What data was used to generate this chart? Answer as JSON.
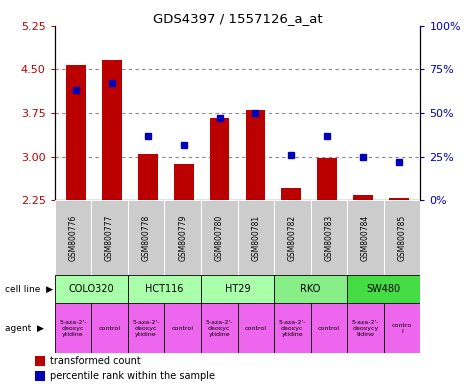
{
  "title": "GDS4397 / 1557126_a_at",
  "samples": [
    "GSM800776",
    "GSM800777",
    "GSM800778",
    "GSM800779",
    "GSM800780",
    "GSM800781",
    "GSM800782",
    "GSM800783",
    "GSM800784",
    "GSM800785"
  ],
  "red_values": [
    4.57,
    4.67,
    3.05,
    2.87,
    3.67,
    3.8,
    2.47,
    2.98,
    2.35,
    2.3
  ],
  "blue_values": [
    0.63,
    0.67,
    0.37,
    0.32,
    0.47,
    0.5,
    0.26,
    0.37,
    0.25,
    0.22
  ],
  "ylim_left": [
    2.25,
    5.25
  ],
  "yticks_left": [
    2.25,
    3.0,
    3.75,
    4.5,
    5.25
  ],
  "ytick_labels_right": [
    "0%",
    "25%",
    "50%",
    "75%",
    "100%"
  ],
  "cell_lines": [
    {
      "label": "COLO320",
      "start": 0,
      "end": 2,
      "color": "#aaffaa"
    },
    {
      "label": "HCT116",
      "start": 2,
      "end": 4,
      "color": "#aaffaa"
    },
    {
      "label": "HT29",
      "start": 4,
      "end": 6,
      "color": "#aaffaa"
    },
    {
      "label": "RKO",
      "start": 6,
      "end": 8,
      "color": "#88ee88"
    },
    {
      "label": "SW480",
      "start": 8,
      "end": 10,
      "color": "#44dd44"
    }
  ],
  "agents": [
    {
      "label": "5-aza-2'-\ndeoxyc\nytidine",
      "idx": 0,
      "color": "#ee66ee"
    },
    {
      "label": "control",
      "idx": 1,
      "color": "#ee66ee"
    },
    {
      "label": "5-aza-2'-\ndeoxyc\nytidine",
      "idx": 2,
      "color": "#ee66ee"
    },
    {
      "label": "control",
      "idx": 3,
      "color": "#ee66ee"
    },
    {
      "label": "5-aza-2'-\ndeoxyc\nytidine",
      "idx": 4,
      "color": "#ee66ee"
    },
    {
      "label": "control",
      "idx": 5,
      "color": "#ee66ee"
    },
    {
      "label": "5-aza-2'-\ndeoxyc\nytidine",
      "idx": 6,
      "color": "#ee66ee"
    },
    {
      "label": "control",
      "idx": 7,
      "color": "#ee66ee"
    },
    {
      "label": "5-aza-2'-\ndeoxycy\ntidine",
      "idx": 8,
      "color": "#ee66ee"
    },
    {
      "label": "contro\nl",
      "idx": 9,
      "color": "#ee66ee"
    }
  ],
  "bar_color": "#bb0000",
  "dot_color": "#0000bb",
  "grid_color": "#888888",
  "sample_bg": "#cccccc",
  "legend_red": "transformed count",
  "legend_blue": "percentile rank within the sample"
}
